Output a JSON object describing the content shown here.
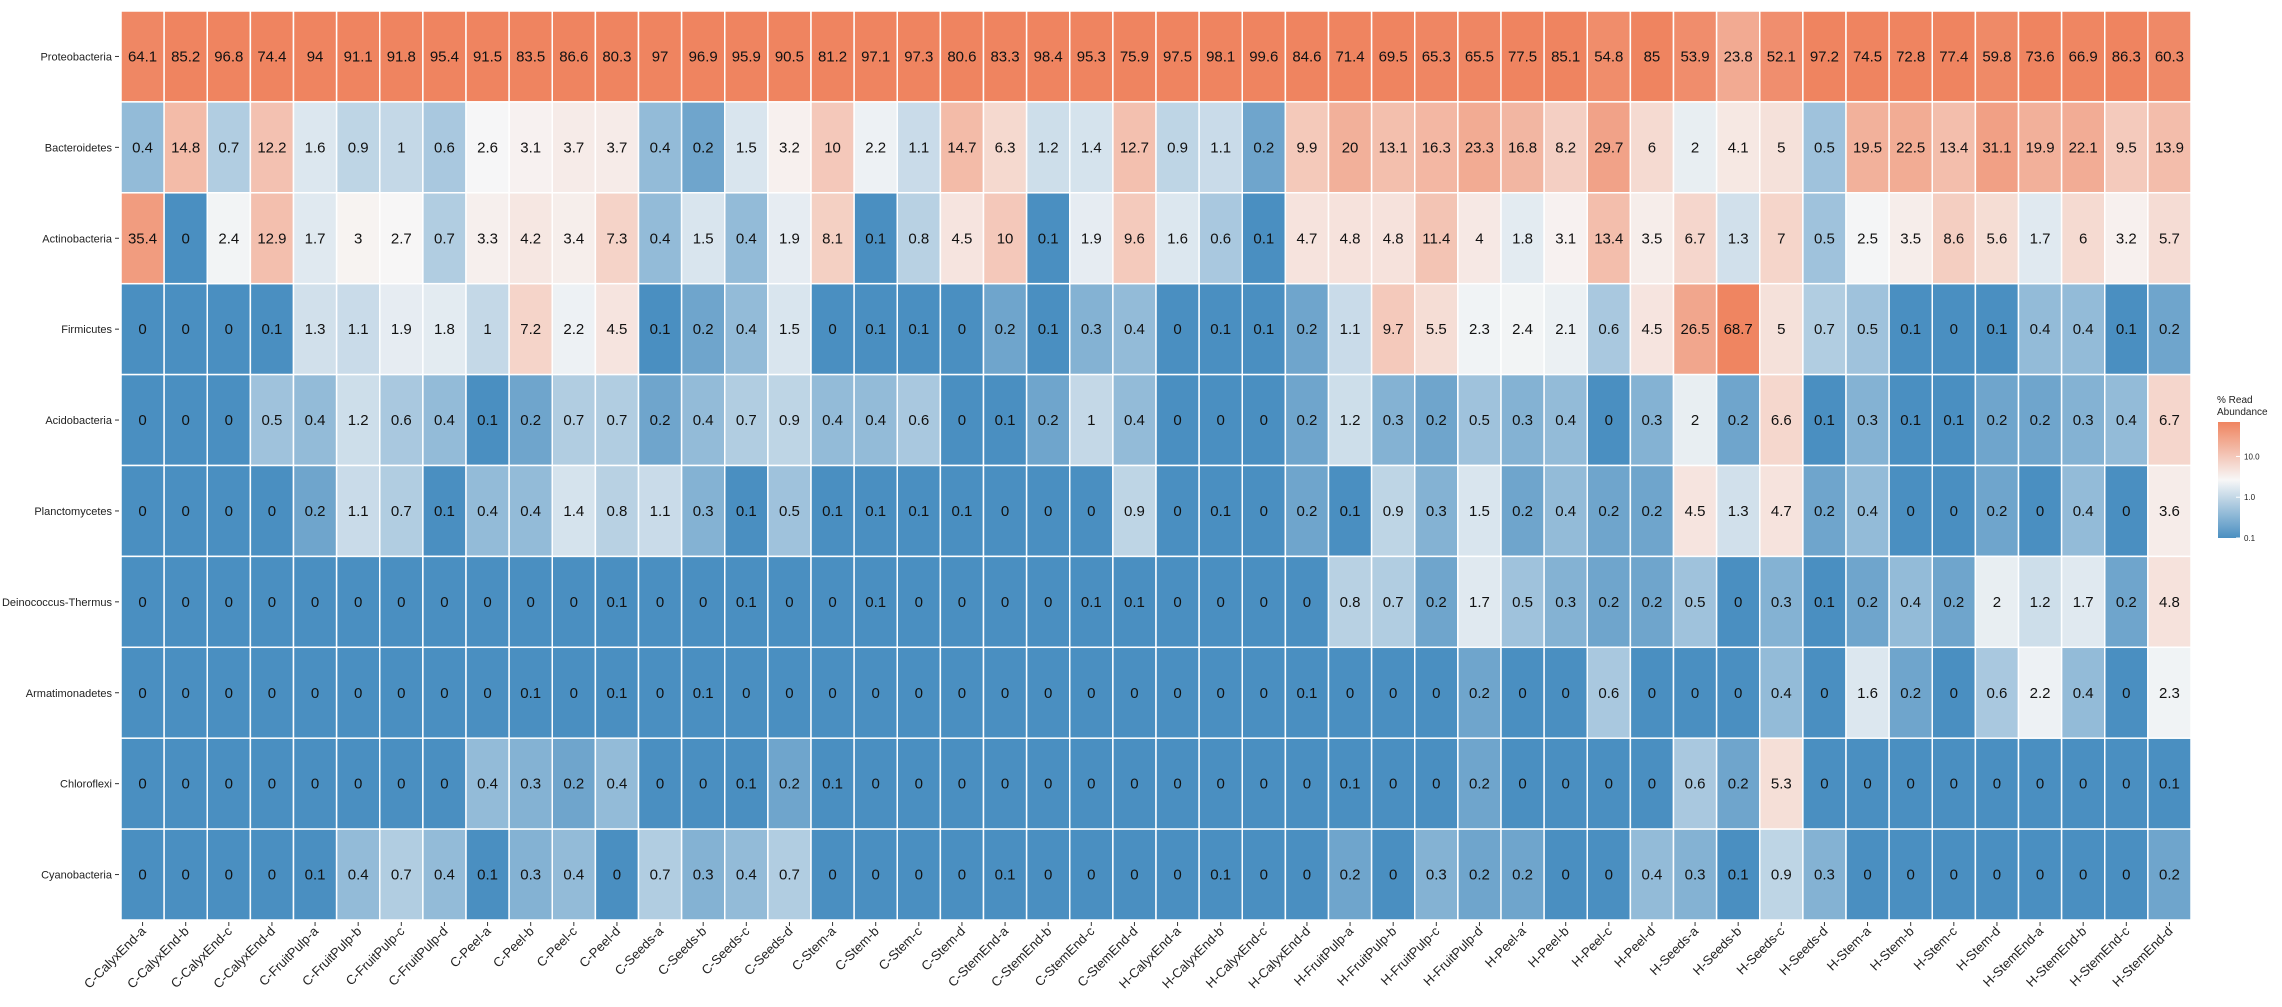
{
  "chart_data": {
    "type": "heatmap",
    "color_scale": "log",
    "colors": {
      "low": "#4a8fc1",
      "mid": "#f7f7f7",
      "high": "#ef8460"
    },
    "legend": {
      "title_line1": "% Read",
      "title_line2": "Abundance",
      "ticks": [
        {
          "label": "10.0",
          "value": 10
        },
        {
          "label": "1.0",
          "value": 1
        },
        {
          "label": "0.1",
          "value": 0.1
        }
      ],
      "range": [
        0.1,
        70
      ]
    },
    "rows": [
      "Proteobacteria",
      "Bacteroidetes",
      "Actinobacteria",
      "Firmicutes",
      "Acidobacteria",
      "Planctomycetes",
      "Deinococcus-Thermus",
      "Armatimonadetes",
      "Chloroflexi",
      "Cyanobacteria"
    ],
    "columns": [
      "C-CalyxEnd-a",
      "C-CalyxEnd-b",
      "C-CalyxEnd-c",
      "C-CalyxEnd-d",
      "C-FruitPulp-a",
      "C-FruitPulp-b",
      "C-FruitPulp-c",
      "C-FruitPulp-d",
      "C-Peel-a",
      "C-Peel-b",
      "C-Peel-c",
      "C-Peel-d",
      "C-Seeds-a",
      "C-Seeds-b",
      "C-Seeds-c",
      "C-Seeds-d",
      "C-Stem-a",
      "C-Stem-b",
      "C-Stem-c",
      "C-Stem-d",
      "C-StemEnd-a",
      "C-StemEnd-b",
      "C-StemEnd-c",
      "C-StemEnd-d",
      "H-CalyxEnd-a",
      "H-CalyxEnd-b",
      "H-CalyxEnd-c",
      "H-CalyxEnd-d",
      "H-FruitPulp-a",
      "H-FruitPulp-b",
      "H-FruitPulp-c",
      "H-FruitPulp-d",
      "H-Peel-a",
      "H-Peel-b",
      "H-Peel-c",
      "H-Peel-d",
      "H-Seeds-a",
      "H-Seeds-b",
      "H-Seeds-c",
      "H-Seeds-d",
      "H-Stem-a",
      "H-Stem-b",
      "H-Stem-c",
      "H-Stem-d",
      "H-StemEnd-a",
      "H-StemEnd-b",
      "H-StemEnd-c",
      "H-StemEnd-d"
    ],
    "values": [
      [
        "64.1",
        "85.2",
        "96.8",
        "74.4",
        "94",
        "91.1",
        "91.8",
        "95.4",
        "91.5",
        "83.5",
        "86.6",
        "80.3",
        "97",
        "96.9",
        "95.9",
        "90.5",
        "81.2",
        "97.1",
        "97.3",
        "80.6",
        "83.3",
        "98.4",
        "95.3",
        "75.9",
        "97.5",
        "98.1",
        "99.6",
        "84.6",
        "71.4",
        "69.5",
        "65.3",
        "65.5",
        "77.5",
        "85.1",
        "54.8",
        "85",
        "53.9",
        "23.8",
        "52.1",
        "97.2",
        "74.5",
        "72.8",
        "77.4",
        "59.8",
        "73.6",
        "66.9",
        "86.3",
        "60.3"
      ],
      [
        "0.4",
        "14.8",
        "0.7",
        "12.2",
        "1.6",
        "0.9",
        "1",
        "0.6",
        "2.6",
        "3.1",
        "3.7",
        "3.7",
        "0.4",
        "0.2",
        "1.5",
        "3.2",
        "10",
        "2.2",
        "1.1",
        "14.7",
        "6.3",
        "1.2",
        "1.4",
        "12.7",
        "0.9",
        "1.1",
        "0.2",
        "9.9",
        "20",
        "13.1",
        "16.3",
        "23.3",
        "16.8",
        "8.2",
        "29.7",
        "6",
        "2",
        "4.1",
        "5",
        "0.5",
        "19.5",
        "22.5",
        "13.4",
        "31.1",
        "19.9",
        "22.1",
        "9.5",
        "13.9"
      ],
      [
        "35.4",
        "0",
        "2.4",
        "12.9",
        "1.7",
        "3",
        "2.7",
        "0.7",
        "3.3",
        "4.2",
        "3.4",
        "7.3",
        "0.4",
        "1.5",
        "0.4",
        "1.9",
        "8.1",
        "0.1",
        "0.8",
        "4.5",
        "10",
        "0.1",
        "1.9",
        "9.6",
        "1.6",
        "0.6",
        "0.1",
        "4.7",
        "4.8",
        "4.8",
        "11.4",
        "4",
        "1.8",
        "3.1",
        "13.4",
        "3.5",
        "6.7",
        "1.3",
        "7",
        "0.5",
        "2.5",
        "3.5",
        "8.6",
        "5.6",
        "1.7",
        "6",
        "3.2",
        "5.7"
      ],
      [
        "0",
        "0",
        "0",
        "0.1",
        "1.3",
        "1.1",
        "1.9",
        "1.8",
        "1",
        "7.2",
        "2.2",
        "4.5",
        "0.1",
        "0.2",
        "0.4",
        "1.5",
        "0",
        "0.1",
        "0.1",
        "0",
        "0.2",
        "0.1",
        "0.3",
        "0.4",
        "0",
        "0.1",
        "0.1",
        "0.2",
        "1.1",
        "9.7",
        "5.5",
        "2.3",
        "2.4",
        "2.1",
        "0.6",
        "4.5",
        "26.5",
        "68.7",
        "5",
        "0.7",
        "0.5",
        "0.1",
        "0",
        "0.1",
        "0.4",
        "0.4",
        "0.1",
        "0.2"
      ],
      [
        "0",
        "0",
        "0",
        "0.5",
        "0.4",
        "1.2",
        "0.6",
        "0.4",
        "0.1",
        "0.2",
        "0.7",
        "0.7",
        "0.2",
        "0.4",
        "0.7",
        "0.9",
        "0.4",
        "0.4",
        "0.6",
        "0",
        "0.1",
        "0.2",
        "1",
        "0.4",
        "0",
        "0",
        "0",
        "0.2",
        "1.2",
        "0.3",
        "0.2",
        "0.5",
        "0.3",
        "0.4",
        "0",
        "0.3",
        "2",
        "0.2",
        "6.6",
        "0.1",
        "0.3",
        "0.1",
        "0.1",
        "0.2",
        "0.2",
        "0.3",
        "0.4",
        "6.7"
      ],
      [
        "0",
        "0",
        "0",
        "0",
        "0.2",
        "1.1",
        "0.7",
        "0.1",
        "0.4",
        "0.4",
        "1.4",
        "0.8",
        "1.1",
        "0.3",
        "0.1",
        "0.5",
        "0.1",
        "0.1",
        "0.1",
        "0.1",
        "0",
        "0",
        "0",
        "0.9",
        "0",
        "0.1",
        "0",
        "0.2",
        "0.1",
        "0.9",
        "0.3",
        "1.5",
        "0.2",
        "0.4",
        "0.2",
        "0.2",
        "4.5",
        "1.3",
        "4.7",
        "0.2",
        "0.4",
        "0",
        "0",
        "0.2",
        "0",
        "0.4",
        "0",
        "3.6"
      ],
      [
        "0",
        "0",
        "0",
        "0",
        "0",
        "0",
        "0",
        "0",
        "0",
        "0",
        "0",
        "0.1",
        "0",
        "0",
        "0.1",
        "0",
        "0",
        "0.1",
        "0",
        "0",
        "0",
        "0",
        "0.1",
        "0.1",
        "0",
        "0",
        "0",
        "0",
        "0.8",
        "0.7",
        "0.2",
        "1.7",
        "0.5",
        "0.3",
        "0.2",
        "0.2",
        "0.5",
        "0",
        "0.3",
        "0.1",
        "0.2",
        "0.4",
        "0.2",
        "2",
        "1.2",
        "1.7",
        "0.2",
        "4.8"
      ],
      [
        "0",
        "0",
        "0",
        "0",
        "0",
        "0",
        "0",
        "0",
        "0",
        "0.1",
        "0",
        "0.1",
        "0",
        "0.1",
        "0",
        "0",
        "0",
        "0",
        "0",
        "0",
        "0",
        "0",
        "0",
        "0",
        "0",
        "0",
        "0",
        "0.1",
        "0",
        "0",
        "0",
        "0.2",
        "0",
        "0",
        "0.6",
        "0",
        "0",
        "0",
        "0.4",
        "0",
        "1.6",
        "0.2",
        "0",
        "0.6",
        "2.2",
        "0.4",
        "0",
        "2.3"
      ],
      [
        "0",
        "0",
        "0",
        "0",
        "0",
        "0",
        "0",
        "0",
        "0.4",
        "0.3",
        "0.2",
        "0.4",
        "0",
        "0",
        "0.1",
        "0.2",
        "0.1",
        "0",
        "0",
        "0",
        "0",
        "0",
        "0",
        "0",
        "0",
        "0",
        "0",
        "0",
        "0.1",
        "0",
        "0",
        "0.2",
        "0",
        "0",
        "0",
        "0",
        "0.6",
        "0.2",
        "5.3",
        "0",
        "0",
        "0",
        "0",
        "0",
        "0",
        "0",
        "0",
        "0.1"
      ],
      [
        "0",
        "0",
        "0",
        "0",
        "0.1",
        "0.4",
        "0.7",
        "0.4",
        "0.1",
        "0.3",
        "0.4",
        "0",
        "0.7",
        "0.3",
        "0.4",
        "0.7",
        "0",
        "0",
        "0",
        "0",
        "0.1",
        "0",
        "0",
        "0",
        "0",
        "0.1",
        "0",
        "0",
        "0.2",
        "0",
        "0.3",
        "0.2",
        "0.2",
        "0",
        "0",
        "0.4",
        "0.3",
        "0.1",
        "0.9",
        "0.3",
        "0",
        "0",
        "0",
        "0",
        "0",
        "0",
        "0",
        "0.2"
      ]
    ]
  }
}
